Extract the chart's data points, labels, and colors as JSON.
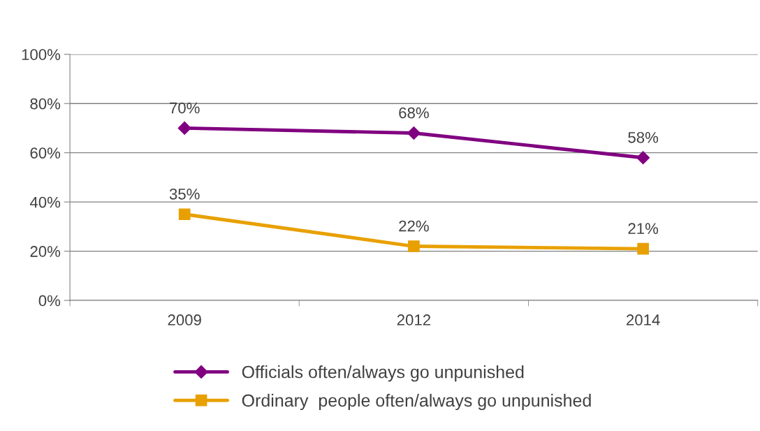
{
  "chart_data": {
    "type": "line",
    "categories": [
      "2009",
      "2012",
      "2014"
    ],
    "series": [
      {
        "name": "Officials often/always go unpunished",
        "color": "#800080",
        "values": [
          70,
          68,
          58
        ],
        "marker": "diamond",
        "value_labels": [
          "70%",
          "68%",
          "58%"
        ]
      },
      {
        "name": "Ordinary  people often/always go unpunished",
        "color": "#e8a000",
        "values": [
          35,
          22,
          21
        ],
        "marker": "square",
        "value_labels": [
          "35%",
          "22%",
          "21%"
        ]
      }
    ],
    "ylim": [
      0,
      100
    ],
    "yticks": [
      {
        "value": 0,
        "label": "0%"
      },
      {
        "value": 20,
        "label": "20%"
      },
      {
        "value": 40,
        "label": "40%"
      },
      {
        "value": 60,
        "label": "60%"
      },
      {
        "value": 80,
        "label": "80%"
      },
      {
        "value": 100,
        "label": "100%"
      }
    ],
    "grid": "y",
    "legend": "bottom",
    "line_style": "solid"
  }
}
